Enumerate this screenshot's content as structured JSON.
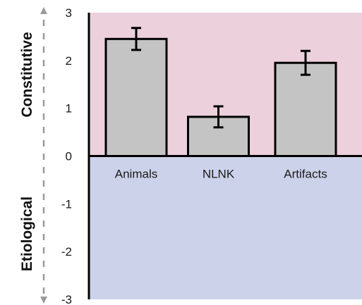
{
  "chart_data": {
    "type": "bar",
    "categories": [
      "Animals",
      "NLNK",
      "Artifacts"
    ],
    "values": [
      2.45,
      0.82,
      1.95
    ],
    "errors": [
      0.23,
      0.22,
      0.25
    ],
    "ylim": [
      -3,
      3
    ],
    "yticks": [
      "3",
      "2",
      "1",
      "0",
      "-1",
      "-2",
      "-3"
    ],
    "positive_region_label": "Constitutive",
    "negative_region_label": "Etiological",
    "grid": false,
    "colors": {
      "positive_region": "#ecd0db",
      "negative_region": "#ccd2e9",
      "bar_fill": "#c4c4c4",
      "bar_stroke": "#000000",
      "axis": "#000000",
      "arrow": "#9a9a9a"
    }
  }
}
